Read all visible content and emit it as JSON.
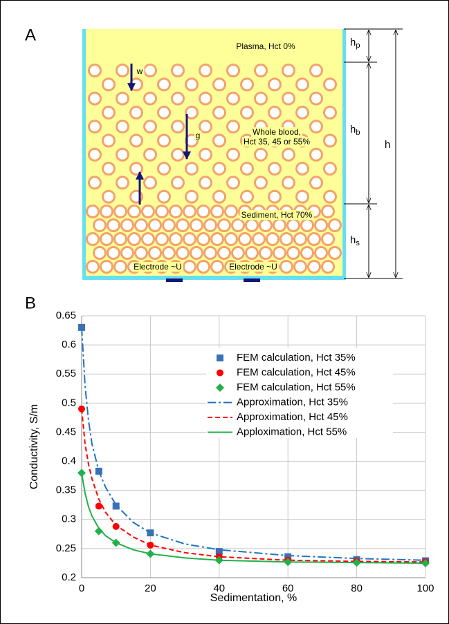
{
  "panel_labels": [
    "A",
    "B"
  ],
  "panel_a": {
    "plasma": "Plasma, Hct 0%",
    "whole_blood": [
      "Whole blood,",
      "Hct 35, 45 or 55%"
    ],
    "sediment": "Sediment, Hct 70%",
    "electrodes": [
      "Electrode ~U",
      "Electrode ~U"
    ],
    "arrows": [
      "w",
      "g"
    ],
    "dimensions": [
      {
        "main": "h",
        "sub": "p"
      },
      {
        "main": "h",
        "sub": "b"
      },
      {
        "main": "h",
        "sub": "s"
      },
      {
        "main": "h"
      }
    ]
  },
  "chart_data": {
    "type": "scatter",
    "x_label": "Sedimentation, %",
    "y_label": "Conductivity, S/m",
    "xlim": [
      0,
      100
    ],
    "xticks": [
      0,
      20,
      40,
      60,
      80,
      100
    ],
    "ylim": [
      0.2,
      0.65
    ],
    "yticks": [
      0.2,
      0.25,
      0.3,
      0.35,
      0.4,
      0.45,
      0.5,
      0.55,
      0.6,
      0.65
    ],
    "grid": true,
    "legend": "upper right",
    "series": [
      {
        "name": "FEM calculation, Hct 35%",
        "mode": "markers",
        "marker": "square",
        "color": "#3a70b4",
        "x": [
          0,
          5,
          10,
          20,
          40,
          60,
          80,
          100
        ],
        "values": [
          0.63,
          0.383,
          0.323,
          0.277,
          0.245,
          0.236,
          0.231,
          0.229
        ]
      },
      {
        "name": "FEM calculation, Hct 45%",
        "mode": "markers",
        "marker": "circle",
        "color": "#ff0000",
        "x": [
          0,
          5,
          10,
          20,
          40,
          60,
          80,
          100
        ],
        "values": [
          0.49,
          0.323,
          0.288,
          0.256,
          0.236,
          0.23,
          0.228,
          0.227
        ]
      },
      {
        "name": "FEM calculation, Hct 55%",
        "mode": "markers",
        "marker": "diamond",
        "color": "#22b04a",
        "x": [
          0,
          5,
          10,
          20,
          40,
          60,
          80,
          100
        ],
        "values": [
          0.38,
          0.28,
          0.26,
          0.241,
          0.23,
          0.227,
          0.226,
          0.225
        ]
      },
      {
        "name": "Approximation, Hct 35%",
        "mode": "line",
        "dash": "dashdot",
        "color": "#1f72c0",
        "x": [
          0,
          1,
          2,
          3,
          5,
          7,
          10,
          15,
          20,
          30,
          40,
          60,
          80,
          100
        ],
        "values": [
          0.63,
          0.53,
          0.47,
          0.43,
          0.383,
          0.355,
          0.325,
          0.295,
          0.277,
          0.258,
          0.248,
          0.238,
          0.233,
          0.23
        ]
      },
      {
        "name": "Approximation, Hct 45%",
        "mode": "line",
        "dash": "dash",
        "color": "#ff0000",
        "x": [
          0,
          1,
          2,
          3,
          5,
          7,
          10,
          15,
          20,
          30,
          40,
          60,
          80,
          100
        ],
        "values": [
          0.49,
          0.43,
          0.395,
          0.37,
          0.335,
          0.312,
          0.29,
          0.27,
          0.256,
          0.243,
          0.236,
          0.23,
          0.228,
          0.227
        ]
      },
      {
        "name": "Apploximation, Hct 55%",
        "mode": "line",
        "dash": "solid",
        "color": "#22b04a",
        "x": [
          0,
          1,
          2,
          3,
          5,
          7,
          10,
          15,
          20,
          30,
          40,
          60,
          80,
          100
        ],
        "values": [
          0.38,
          0.345,
          0.322,
          0.306,
          0.285,
          0.272,
          0.26,
          0.248,
          0.241,
          0.234,
          0.23,
          0.227,
          0.226,
          0.225
        ]
      }
    ]
  }
}
